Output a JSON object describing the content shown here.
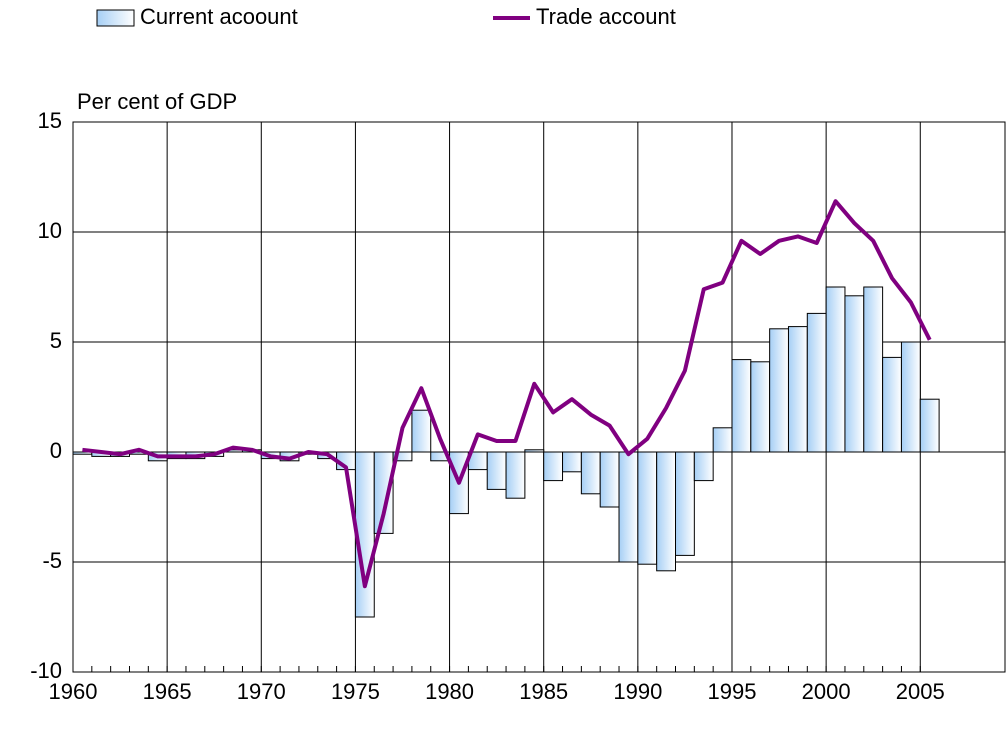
{
  "chart_data": {
    "type": "bar-line",
    "y_label": "Per cent of GDP",
    "x": [
      1960,
      1961,
      1962,
      1963,
      1964,
      1965,
      1966,
      1967,
      1968,
      1969,
      1970,
      1971,
      1972,
      1973,
      1974,
      1975,
      1976,
      1977,
      1978,
      1979,
      1980,
      1981,
      1982,
      1983,
      1984,
      1985,
      1986,
      1987,
      1988,
      1989,
      1990,
      1991,
      1992,
      1993,
      1994,
      1995,
      1996,
      1997,
      1998,
      1999,
      2000,
      2001,
      2002,
      2003,
      2004,
      2005
    ],
    "series": [
      {
        "name": "Current acoount",
        "type": "bar",
        "color": "#a6cff5",
        "values": [
          -0.1,
          -0.2,
          -0.2,
          -0.1,
          -0.4,
          -0.3,
          -0.3,
          -0.2,
          0.1,
          0.1,
          -0.3,
          -0.4,
          -0.1,
          -0.3,
          -0.8,
          -7.5,
          -3.7,
          -0.4,
          1.9,
          -0.4,
          -2.8,
          -0.8,
          -1.7,
          -2.1,
          0.1,
          -1.3,
          -0.9,
          -1.9,
          -2.5,
          -5.0,
          -5.1,
          -5.4,
          -4.7,
          -1.3,
          1.1,
          4.2,
          4.1,
          5.6,
          5.7,
          6.3,
          7.5,
          7.1,
          7.5,
          4.3,
          5.0,
          2.4
        ]
      },
      {
        "name": "Trade account",
        "type": "line",
        "color": "#800080",
        "values": [
          0.1,
          0.0,
          -0.1,
          0.1,
          -0.2,
          -0.2,
          -0.2,
          -0.1,
          0.2,
          0.1,
          -0.2,
          -0.3,
          0.0,
          -0.1,
          -0.7,
          -6.1,
          -2.8,
          1.1,
          2.9,
          0.6,
          -1.4,
          0.8,
          0.5,
          0.5,
          3.1,
          1.8,
          2.4,
          1.7,
          1.2,
          -0.1,
          0.6,
          2.0,
          3.7,
          7.4,
          7.7,
          9.6,
          9.0,
          9.6,
          9.8,
          9.5,
          11.4,
          10.4,
          9.6,
          7.9,
          6.8,
          5.1
        ]
      }
    ],
    "xlim": [
      1960,
      2009.5
    ],
    "xticks": [
      1960,
      1965,
      1970,
      1975,
      1980,
      1985,
      1990,
      1995,
      2000,
      2005
    ],
    "ylim": [
      -10,
      15
    ],
    "yticks": [
      -10,
      -5,
      0,
      5,
      10,
      15
    ],
    "grid": true
  }
}
